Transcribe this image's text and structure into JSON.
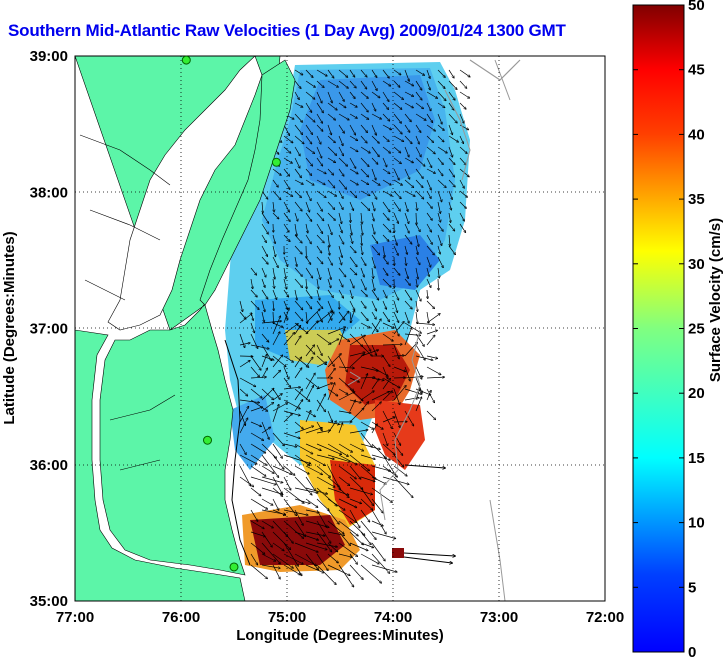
{
  "title": "Southern Mid-Atlantic Raw Velocities (1 Day Avg) 2009/01/24 1300 GMT",
  "map": {
    "xlabel": "Longitude (Degrees:Minutes)",
    "ylabel": "Latitude (Degrees:Minutes)",
    "x_ticks": [
      "77:00",
      "76:00",
      "75:00",
      "74:00",
      "73:00",
      "72:00"
    ],
    "y_ticks": [
      "39:00",
      "38:00",
      "37:00",
      "36:00",
      "35:00"
    ],
    "lon_range": [
      -77,
      -72
    ],
    "lat_range": [
      35,
      39
    ],
    "land_color": "#5cf5a8",
    "grid": "dotted"
  },
  "colorbar": {
    "label": "Surface Velocity (cm/s)",
    "ticks": [
      "0",
      "5",
      "10",
      "15",
      "20",
      "25",
      "30",
      "35",
      "40",
      "45",
      "50"
    ],
    "range": [
      0,
      50
    ],
    "colormap": "jet"
  },
  "stations": [
    {
      "lon": -75.95,
      "lat": 38.97
    },
    {
      "lon": -75.1,
      "lat": 38.22
    },
    {
      "lon": -75.75,
      "lat": 36.18
    },
    {
      "lon": -75.5,
      "lat": 35.25
    }
  ]
}
